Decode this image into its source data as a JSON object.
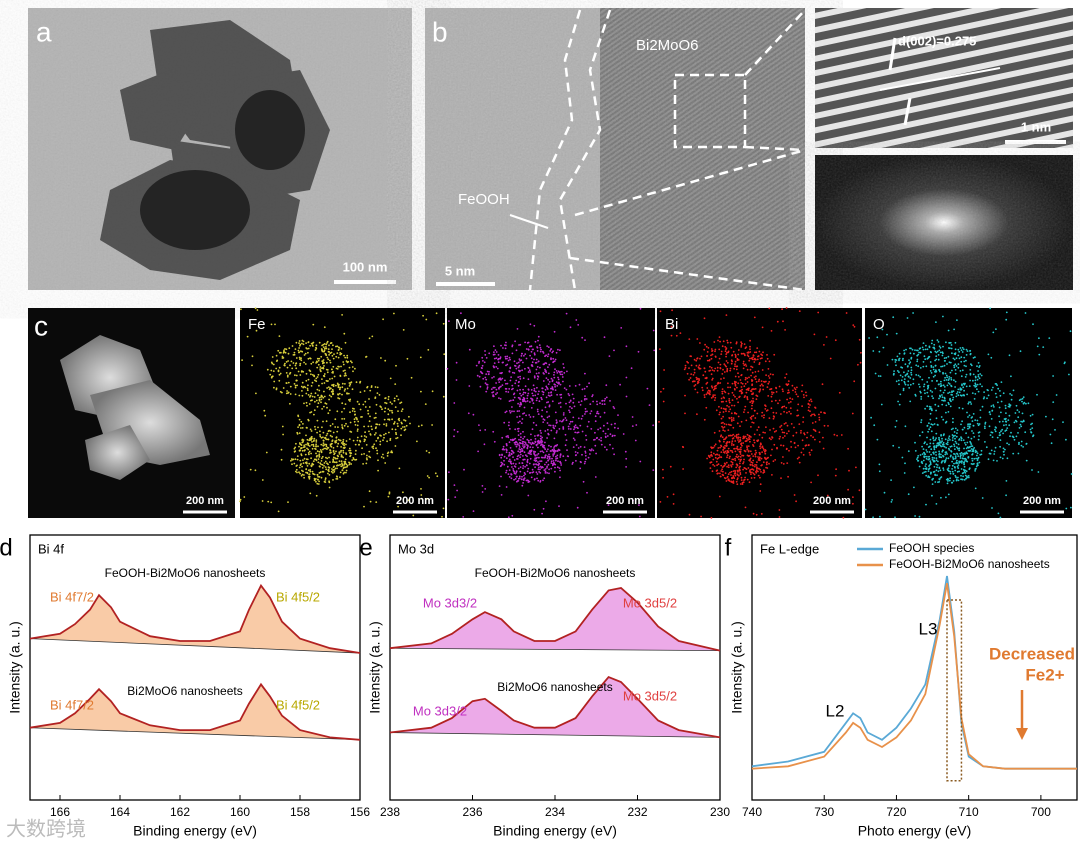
{
  "images": {
    "a": {
      "label": "a",
      "scale_bar": "100 nm"
    },
    "b": {
      "label": "b",
      "scale_bar": "5 nm",
      "phase_1": "Bi2MoO6",
      "phase_2": "FeOOH",
      "inset_scale_bar": "1 nm",
      "lattice": "d(002)=0.275"
    },
    "c": {
      "label": "c",
      "maps": [
        {
          "scale_bar": "200 nm"
        },
        {
          "element": "Fe",
          "color": "#d8cf3c",
          "scale_bar": "200 nm"
        },
        {
          "element": "Mo",
          "color": "#c22bd0",
          "scale_bar": "200 nm"
        },
        {
          "element": "Bi",
          "color": "#ee2020",
          "scale_bar": "200 nm"
        },
        {
          "element": "O",
          "color": "#25c8cc",
          "scale_bar": "200 nm"
        }
      ]
    }
  },
  "watermark": "大数跨境",
  "chart_data": [
    {
      "type": "line",
      "panel_label": "d",
      "xlabel": "Binding energy (eV)",
      "ylabel": "Intensity (a. u.)",
      "xlim": [
        167,
        156
      ],
      "xticks": [
        166,
        164,
        162,
        160,
        158,
        156
      ],
      "ylim": [
        0,
        11
      ],
      "legend": false,
      "annotations": [
        "Bi 4f",
        "Bi 4f7/2",
        "Bi 4f5/2",
        "Bi 4f7/2",
        "Bi 4f5/2"
      ],
      "x": [
        167,
        166,
        165.5,
        165,
        164.7,
        164.3,
        164,
        163,
        162,
        161,
        160,
        159.7,
        159.3,
        159,
        158.6,
        158,
        157,
        156
      ],
      "series": [
        {
          "name": "FeOOH-Bi2MoO6 nanosheets",
          "color": "#b22222",
          "fill": "#f7b98a",
          "values": [
            6.7,
            6.9,
            7.3,
            7.9,
            8.5,
            8.0,
            7.4,
            6.8,
            6.6,
            6.6,
            7.0,
            7.9,
            8.9,
            8.4,
            7.4,
            6.7,
            6.3,
            6.1
          ]
        },
        {
          "name": "Bi2MoO6 nanosheets",
          "color": "#b22222",
          "fill": "#f7b98a",
          "values": [
            3.0,
            3.2,
            3.6,
            4.2,
            4.6,
            4.1,
            3.6,
            3.1,
            2.9,
            2.9,
            3.3,
            4.0,
            4.8,
            4.3,
            3.5,
            2.9,
            2.6,
            2.5
          ]
        }
      ]
    },
    {
      "type": "line",
      "panel_label": "e",
      "xlabel": "Binding energy (eV)",
      "ylabel": "Intensity (a. u.)",
      "xlim": [
        238,
        230
      ],
      "xticks": [
        238,
        236,
        234,
        232,
        230
      ],
      "ylim": [
        0,
        11
      ],
      "legend": false,
      "annotations": [
        "Mo 3d",
        "Mo 3d3/2",
        "Mo 3d5/2",
        "Mo 3d3/2",
        "Mo 3d5/2"
      ],
      "x": [
        238,
        237,
        236.5,
        236,
        235.7,
        235.3,
        235,
        234.5,
        234,
        233.5,
        233.1,
        232.7,
        232.4,
        232,
        231.5,
        231,
        230
      ],
      "series": [
        {
          "name": "FeOOH-Bi2MoO6 nanosheets",
          "color": "#b22222",
          "fill": "#e58ee0",
          "values": [
            6.3,
            6.5,
            6.9,
            7.5,
            7.8,
            7.5,
            7.0,
            6.6,
            6.6,
            7.0,
            7.9,
            8.7,
            8.8,
            8.2,
            7.2,
            6.6,
            6.2
          ]
        },
        {
          "name": "Bi2MoO6 nanosheets",
          "color": "#b22222",
          "fill": "#e58ee0",
          "values": [
            2.8,
            3.0,
            3.4,
            4.1,
            4.2,
            3.7,
            3.3,
            3.0,
            3.0,
            3.4,
            4.3,
            5.1,
            4.9,
            4.2,
            3.3,
            2.9,
            2.6
          ]
        }
      ]
    },
    {
      "type": "line",
      "panel_label": "f",
      "xlabel": "Photo energy (eV)",
      "ylabel": "Intensity (a. u.)",
      "xlim": [
        740,
        695
      ],
      "xticks": [
        740,
        730,
        720,
        710,
        700
      ],
      "ylim": [
        0,
        11
      ],
      "legend": "upper right",
      "annotations": [
        "Fe L-edge",
        "L2",
        "L3",
        "Decreased",
        "Fe2+"
      ],
      "x": [
        740,
        735,
        730,
        727,
        726,
        725,
        724,
        722,
        720,
        718,
        716,
        714,
        713,
        712,
        711,
        710,
        708,
        705,
        700,
        695
      ],
      "series": [
        {
          "name": "FeOOH species",
          "color": "#5aa9d6",
          "values": [
            1.4,
            1.6,
            2.0,
            3.2,
            3.6,
            3.4,
            2.8,
            2.5,
            3.0,
            3.8,
            4.8,
            7.5,
            9.3,
            7.0,
            3.2,
            1.8,
            1.4,
            1.3,
            1.3,
            1.3
          ]
        },
        {
          "name": "FeOOH-Bi2MoO6 nanosheets",
          "color": "#e8914a",
          "values": [
            1.3,
            1.4,
            1.8,
            2.8,
            3.2,
            3.0,
            2.5,
            2.2,
            2.6,
            3.3,
            4.4,
            7.3,
            9.0,
            6.8,
            3.4,
            1.9,
            1.4,
            1.3,
            1.3,
            1.3
          ]
        }
      ]
    }
  ]
}
